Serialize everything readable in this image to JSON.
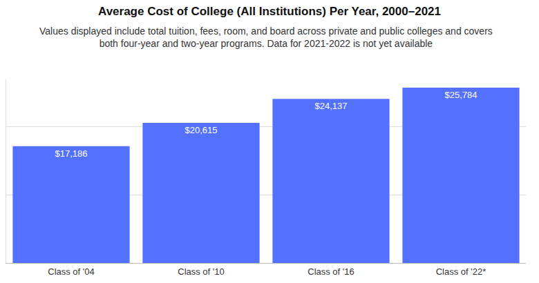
{
  "chart_data": {
    "type": "bar",
    "title": "Average Cost of College (All Institutions) Per Year, 2000–2021",
    "subtitle": "Values displayed include total tuition, fees, room, and board across private and public colleges and covers\nboth four-year and two-year programs. Data for 2021-2022 is not yet available",
    "categories": [
      "Class of '04",
      "Class of '10",
      "Class of '16",
      "Class of '22*"
    ],
    "values": [
      17186,
      20615,
      24137,
      25784
    ],
    "value_labels": [
      "$17,186",
      "$20,615",
      "$24,137",
      "$25,784"
    ],
    "color": "#5470ff",
    "ylim": [
      0,
      27000
    ],
    "yticks": [
      0,
      10000,
      20000
    ],
    "grid": true,
    "data_labels": true,
    "tick_labels": "x"
  }
}
